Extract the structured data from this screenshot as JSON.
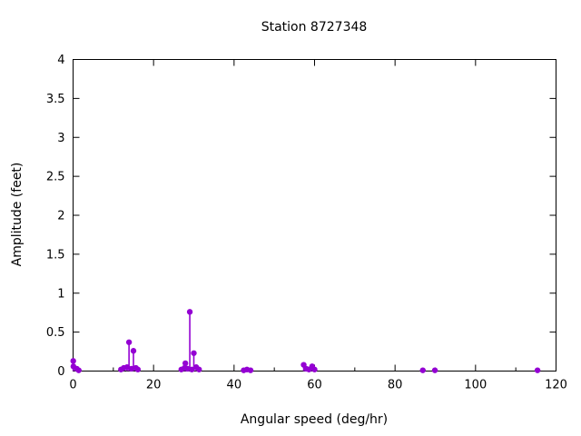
{
  "chart_data": {
    "type": "scatter",
    "style": "stem-and-points",
    "title": "Station 8727348",
    "xlabel": "Angular speed (deg/hr)",
    "ylabel": "Amplitude (feet)",
    "xlim": [
      0,
      120
    ],
    "ylim": [
      0,
      4
    ],
    "xticks": [
      0,
      20,
      40,
      60,
      80,
      100,
      120
    ],
    "x_minor_step": 10,
    "yticks": [
      0,
      0.5,
      1,
      1.5,
      2,
      2.5,
      3,
      3.5,
      4
    ],
    "grid": false,
    "legend_position": "none",
    "point_color": "#9400d3",
    "axis_color": "#000000",
    "background_color": "#ffffff",
    "points": [
      [
        0.04,
        0.13
      ],
      [
        0.08,
        0.06
      ],
      [
        0.9,
        0.03
      ],
      [
        1.4,
        0.01
      ],
      [
        11.9,
        0.02
      ],
      [
        12.6,
        0.04
      ],
      [
        13.4,
        0.05
      ],
      [
        13.9,
        0.37
      ],
      [
        14.5,
        0.03
      ],
      [
        15.0,
        0.26
      ],
      [
        15.6,
        0.04
      ],
      [
        16.1,
        0.02
      ],
      [
        26.9,
        0.02
      ],
      [
        27.7,
        0.04
      ],
      [
        27.9,
        0.1
      ],
      [
        28.4,
        0.03
      ],
      [
        29.0,
        0.76
      ],
      [
        29.5,
        0.02
      ],
      [
        30.0,
        0.23
      ],
      [
        30.6,
        0.05
      ],
      [
        31.3,
        0.02
      ],
      [
        42.4,
        0.01
      ],
      [
        43.2,
        0.02
      ],
      [
        44.1,
        0.01
      ],
      [
        57.3,
        0.08
      ],
      [
        57.9,
        0.03
      ],
      [
        58.6,
        0.02
      ],
      [
        59.4,
        0.06
      ],
      [
        60.0,
        0.02
      ],
      [
        86.9,
        0.01
      ],
      [
        89.9,
        0.01
      ],
      [
        115.4,
        0.01
      ]
    ]
  }
}
